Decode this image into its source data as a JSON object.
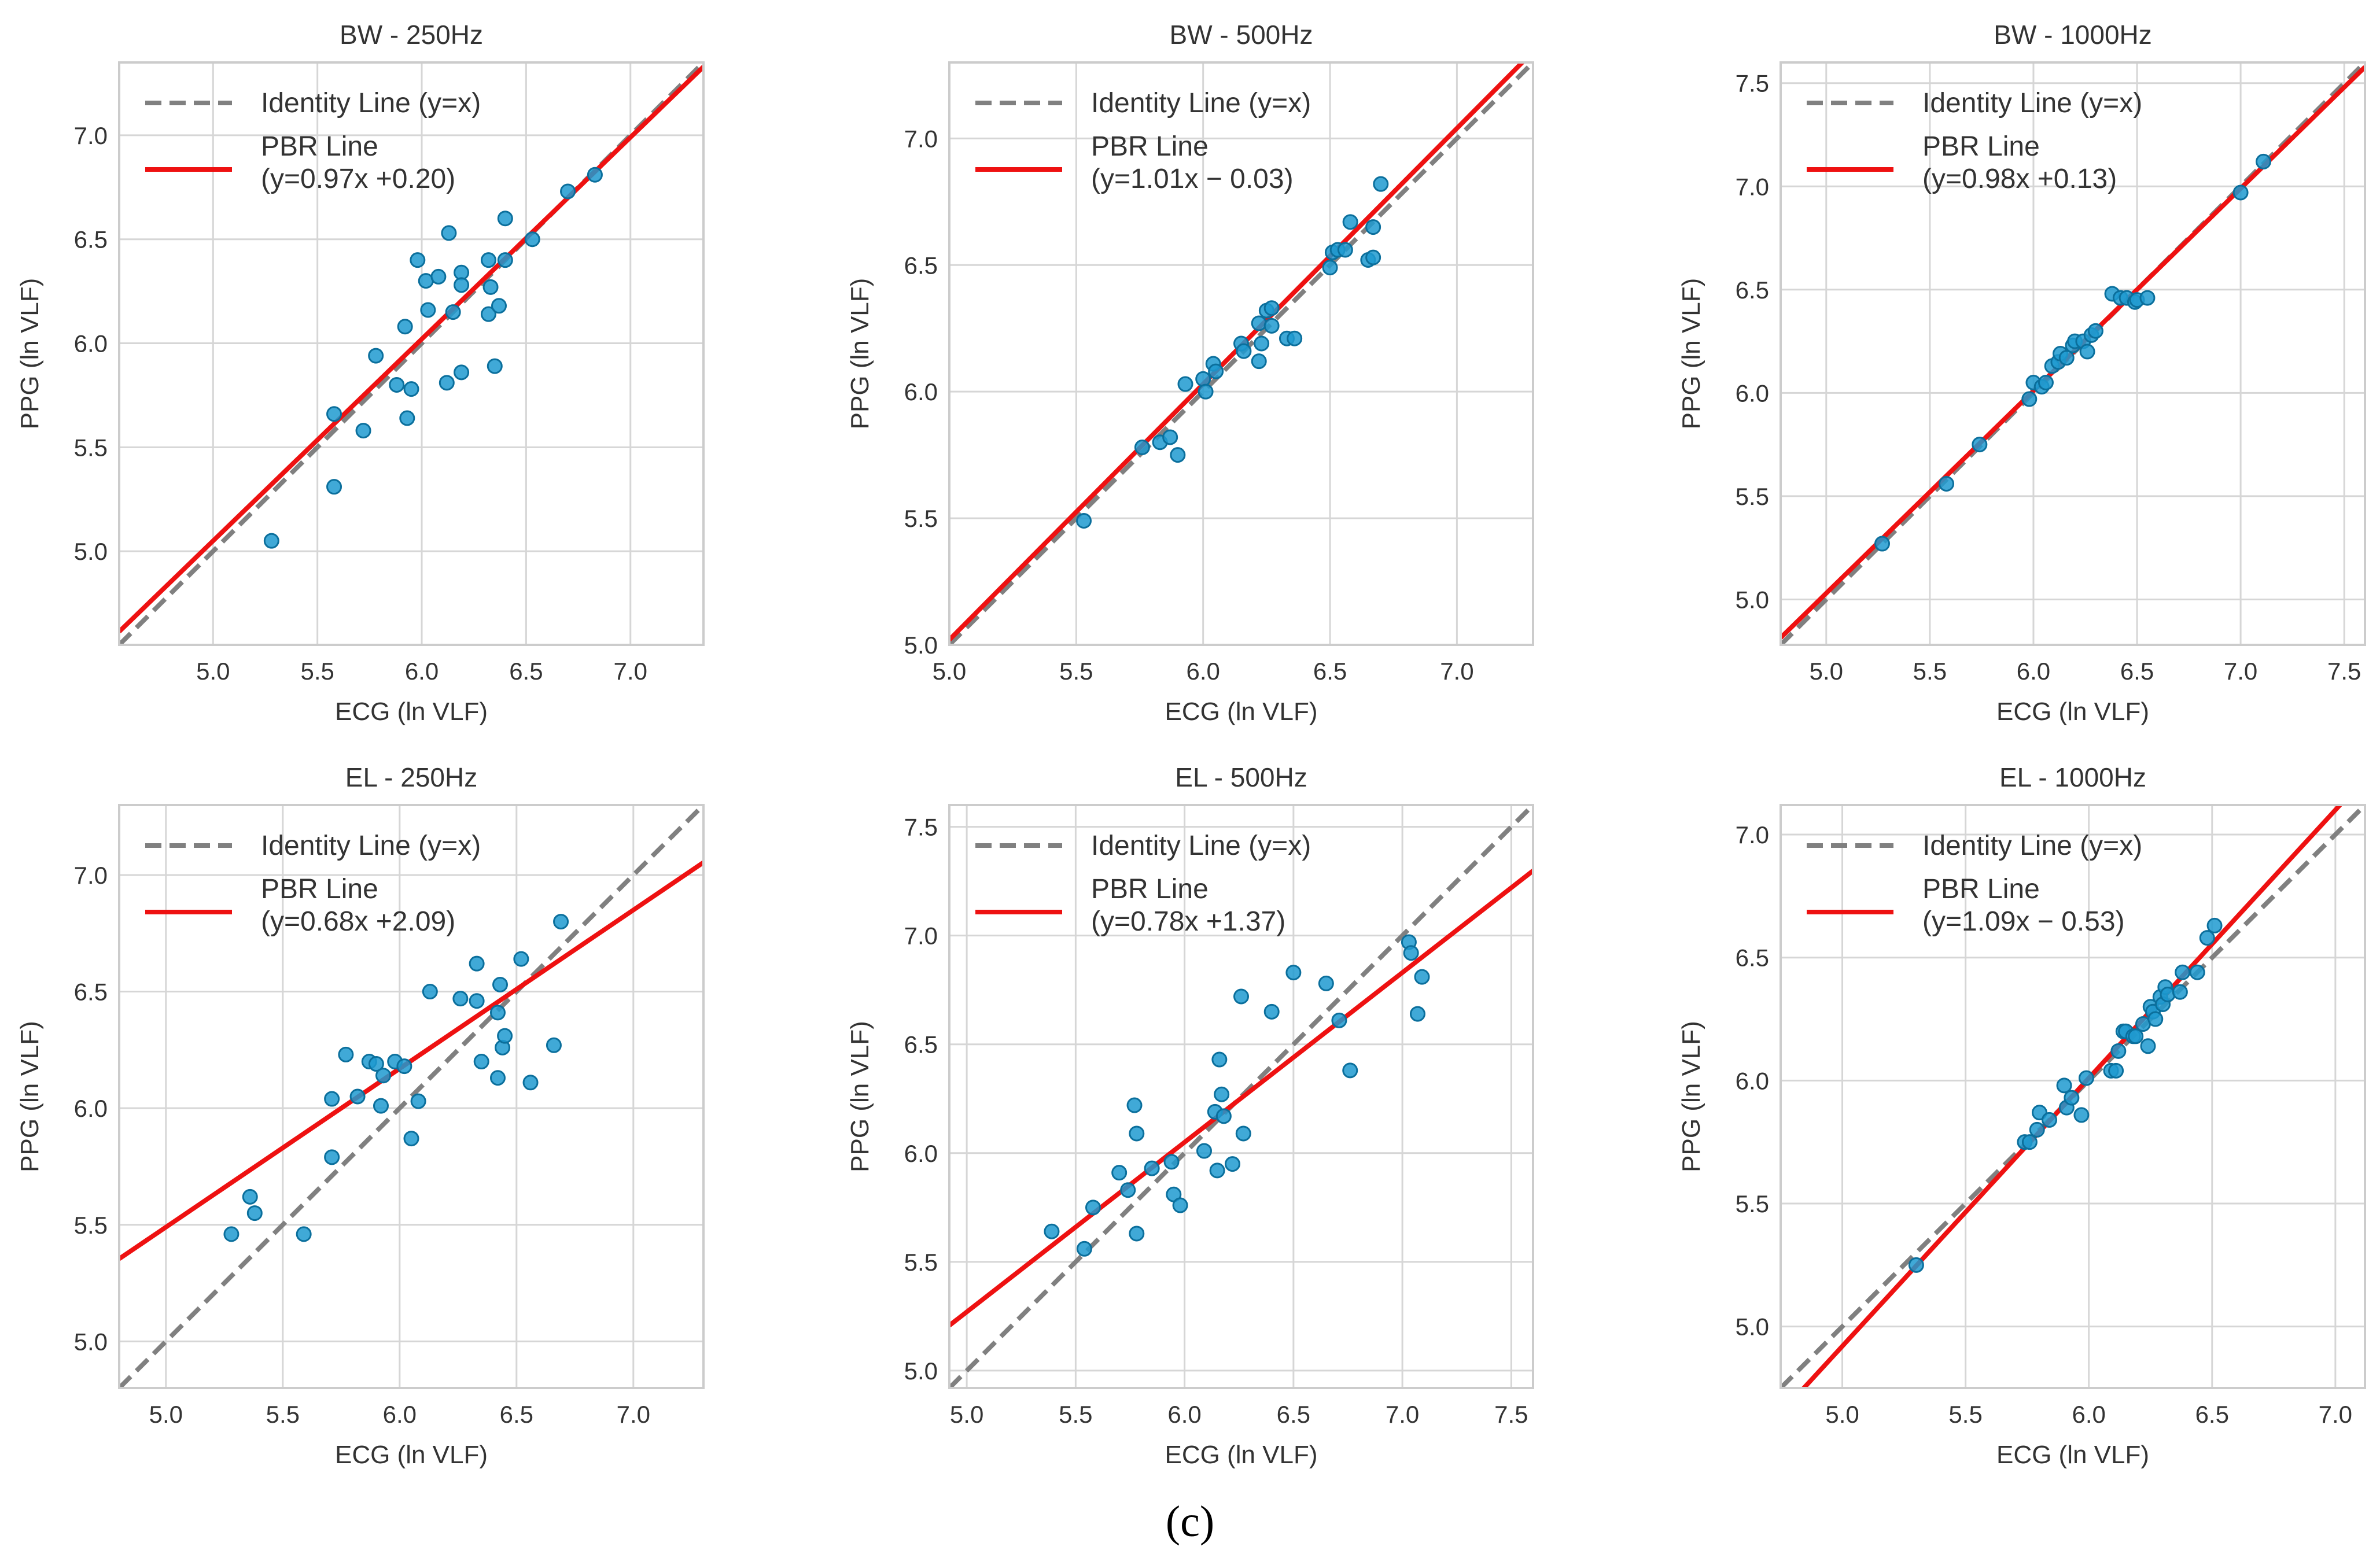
{
  "figure": {
    "caption": "(c)"
  },
  "colors": {
    "identity": "#808080",
    "pbr": "#ee1111",
    "points_fill": "#1f9ad0",
    "points_edge": "#0b6f9c",
    "grid": "#d6d6d6",
    "frame": "#cccccc"
  },
  "chart_data": [
    {
      "type": "scatter",
      "title": "BW - 250Hz",
      "xlabel": "ECG (ln VLF)",
      "ylabel": "PPG (ln VLF)",
      "xlim": [
        4.55,
        7.35
      ],
      "ylim": [
        4.55,
        7.35
      ],
      "xticks": [
        5.0,
        5.5,
        6.0,
        6.5,
        7.0
      ],
      "yticks": [
        5.0,
        5.5,
        6.0,
        6.5,
        7.0
      ],
      "tick_labels_x": [
        "5.0",
        "5.5",
        "6.0",
        "6.5",
        "7.0"
      ],
      "tick_labels_y": [
        "5.0",
        "5.5",
        "6.0",
        "6.5",
        "7.0"
      ],
      "grid": true,
      "legend_position": "upper-left",
      "legend": [
        "Identity Line (y=x)",
        "PBR Line",
        "(y=0.97x +0.20)"
      ],
      "pbr": {
        "slope": 0.97,
        "intercept": 0.2
      },
      "points": [
        [
          5.28,
          5.05
        ],
        [
          5.58,
          5.31
        ],
        [
          5.58,
          5.66
        ],
        [
          5.72,
          5.58
        ],
        [
          5.78,
          5.94
        ],
        [
          5.88,
          5.8
        ],
        [
          5.92,
          6.08
        ],
        [
          5.93,
          5.64
        ],
        [
          5.95,
          5.78
        ],
        [
          5.98,
          6.4
        ],
        [
          6.02,
          6.3
        ],
        [
          6.03,
          6.16
        ],
        [
          6.08,
          6.32
        ],
        [
          6.12,
          5.81
        ],
        [
          6.13,
          6.53
        ],
        [
          6.15,
          6.15
        ],
        [
          6.19,
          5.86
        ],
        [
          6.19,
          6.34
        ],
        [
          6.19,
          6.28
        ],
        [
          6.32,
          6.4
        ],
        [
          6.32,
          6.14
        ],
        [
          6.33,
          6.27
        ],
        [
          6.35,
          5.89
        ],
        [
          6.37,
          6.18
        ],
        [
          6.4,
          6.4
        ],
        [
          6.4,
          6.6
        ],
        [
          6.53,
          6.5
        ],
        [
          6.7,
          6.73
        ],
        [
          6.83,
          6.81
        ]
      ]
    },
    {
      "type": "scatter",
      "title": "BW - 500Hz",
      "xlabel": "ECG (ln VLF)",
      "ylabel": "PPG (ln VLF)",
      "xlim": [
        5.0,
        7.3
      ],
      "ylim": [
        5.0,
        7.3
      ],
      "xticks": [
        5.0,
        5.5,
        6.0,
        6.5,
        7.0
      ],
      "yticks": [
        5.0,
        5.5,
        6.0,
        6.5,
        7.0
      ],
      "tick_labels_x": [
        "5.0",
        "5.5",
        "6.0",
        "6.5",
        "7.0"
      ],
      "tick_labels_y": [
        "5.0",
        "5.5",
        "6.0",
        "6.5",
        "7.0"
      ],
      "grid": true,
      "legend_position": "upper-left",
      "legend": [
        "Identity Line (y=x)",
        "PBR Line",
        "(y=1.01x − 0.03)"
      ],
      "pbr": {
        "slope": 1.01,
        "intercept": -0.03
      },
      "points": [
        [
          5.53,
          5.49
        ],
        [
          5.76,
          5.78
        ],
        [
          5.83,
          5.8
        ],
        [
          5.87,
          5.82
        ],
        [
          5.9,
          5.75
        ],
        [
          5.93,
          6.03
        ],
        [
          6.0,
          6.05
        ],
        [
          6.01,
          6.0
        ],
        [
          6.04,
          6.11
        ],
        [
          6.05,
          6.08
        ],
        [
          6.15,
          6.19
        ],
        [
          6.16,
          6.16
        ],
        [
          6.22,
          6.12
        ],
        [
          6.22,
          6.27
        ],
        [
          6.23,
          6.19
        ],
        [
          6.25,
          6.32
        ],
        [
          6.27,
          6.33
        ],
        [
          6.27,
          6.26
        ],
        [
          6.33,
          6.21
        ],
        [
          6.36,
          6.21
        ],
        [
          6.5,
          6.49
        ],
        [
          6.51,
          6.55
        ],
        [
          6.53,
          6.56
        ],
        [
          6.56,
          6.56
        ],
        [
          6.58,
          6.67
        ],
        [
          6.65,
          6.52
        ],
        [
          6.67,
          6.53
        ],
        [
          6.67,
          6.65
        ],
        [
          6.7,
          6.82
        ]
      ]
    },
    {
      "type": "scatter",
      "title": "BW - 1000Hz",
      "xlabel": "ECG (ln VLF)",
      "ylabel": "PPG (ln VLF)",
      "xlim": [
        4.78,
        7.6
      ],
      "ylim": [
        4.78,
        7.6
      ],
      "xticks": [
        5.0,
        5.5,
        6.0,
        6.5,
        7.0,
        7.5
      ],
      "yticks": [
        5.0,
        5.5,
        6.0,
        6.5,
        7.0,
        7.5
      ],
      "tick_labels_x": [
        "5.0",
        "5.5",
        "6.0",
        "6.5",
        "7.0",
        "7.5"
      ],
      "tick_labels_y": [
        "5.0",
        "5.5",
        "6.0",
        "6.5",
        "7.0",
        "7.5"
      ],
      "grid": true,
      "legend_position": "upper-left",
      "legend": [
        "Identity Line (y=x)",
        "PBR Line",
        "(y=0.98x +0.13)"
      ],
      "pbr": {
        "slope": 0.98,
        "intercept": 0.13
      },
      "points": [
        [
          5.27,
          5.27
        ],
        [
          5.58,
          5.56
        ],
        [
          5.74,
          5.75
        ],
        [
          5.98,
          5.97
        ],
        [
          6.0,
          6.05
        ],
        [
          6.04,
          6.03
        ],
        [
          6.06,
          6.05
        ],
        [
          6.09,
          6.13
        ],
        [
          6.12,
          6.15
        ],
        [
          6.13,
          6.19
        ],
        [
          6.16,
          6.17
        ],
        [
          6.19,
          6.23
        ],
        [
          6.2,
          6.25
        ],
        [
          6.24,
          6.25
        ],
        [
          6.26,
          6.2
        ],
        [
          6.28,
          6.28
        ],
        [
          6.3,
          6.3
        ],
        [
          6.38,
          6.48
        ],
        [
          6.42,
          6.46
        ],
        [
          6.45,
          6.46
        ],
        [
          6.49,
          6.44
        ],
        [
          6.5,
          6.45
        ],
        [
          6.55,
          6.46
        ],
        [
          7.0,
          6.97
        ],
        [
          7.11,
          7.12
        ]
      ]
    },
    {
      "type": "scatter",
      "title": "EL - 250Hz",
      "xlabel": "ECG (ln VLF)",
      "ylabel": "PPG (ln VLF)",
      "xlim": [
        4.8,
        7.3
      ],
      "ylim": [
        4.8,
        7.3
      ],
      "xticks": [
        5.0,
        5.5,
        6.0,
        6.5,
        7.0
      ],
      "yticks": [
        5.0,
        5.5,
        6.0,
        6.5,
        7.0
      ],
      "tick_labels_x": [
        "5.0",
        "5.5",
        "6.0",
        "6.5",
        "7.0"
      ],
      "tick_labels_y": [
        "5.0",
        "5.5",
        "6.0",
        "6.5",
        "7.0"
      ],
      "grid": true,
      "legend_position": "upper-left",
      "legend": [
        "Identity Line (y=x)",
        "PBR Line",
        "(y=0.68x +2.09)"
      ],
      "pbr": {
        "slope": 0.68,
        "intercept": 2.09
      },
      "points": [
        [
          5.28,
          5.46
        ],
        [
          5.36,
          5.62
        ],
        [
          5.38,
          5.55
        ],
        [
          5.59,
          5.46
        ],
        [
          5.71,
          5.79
        ],
        [
          5.71,
          6.04
        ],
        [
          5.77,
          6.23
        ],
        [
          5.82,
          6.05
        ],
        [
          5.87,
          6.2
        ],
        [
          5.9,
          6.19
        ],
        [
          5.92,
          6.01
        ],
        [
          5.93,
          6.14
        ],
        [
          5.98,
          6.2
        ],
        [
          6.02,
          6.18
        ],
        [
          6.05,
          5.87
        ],
        [
          6.08,
          6.03
        ],
        [
          6.13,
          6.5
        ],
        [
          6.26,
          6.47
        ],
        [
          6.33,
          6.46
        ],
        [
          6.33,
          6.62
        ],
        [
          6.35,
          6.2
        ],
        [
          6.42,
          6.13
        ],
        [
          6.42,
          6.41
        ],
        [
          6.43,
          6.53
        ],
        [
          6.44,
          6.26
        ],
        [
          6.45,
          6.31
        ],
        [
          6.52,
          6.64
        ],
        [
          6.56,
          6.11
        ],
        [
          6.66,
          6.27
        ],
        [
          6.69,
          6.8
        ]
      ]
    },
    {
      "type": "scatter",
      "title": "EL - 500Hz",
      "xlabel": "ECG (ln VLF)",
      "ylabel": "PPG (ln VLF)",
      "xlim": [
        4.92,
        7.6
      ],
      "ylim": [
        4.92,
        7.6
      ],
      "xticks": [
        5.0,
        5.5,
        6.0,
        6.5,
        7.0,
        7.5
      ],
      "yticks": [
        5.0,
        5.5,
        6.0,
        6.5,
        7.0,
        7.5
      ],
      "tick_labels_x": [
        "5.0",
        "5.5",
        "6.0",
        "6.5",
        "7.0",
        "7.5"
      ],
      "tick_labels_y": [
        "5.0",
        "5.5",
        "6.0",
        "6.5",
        "7.0",
        "7.5"
      ],
      "grid": true,
      "legend_position": "upper-left",
      "legend": [
        "Identity Line (y=x)",
        "PBR Line",
        "(y=0.78x +1.37)"
      ],
      "pbr": {
        "slope": 0.78,
        "intercept": 1.37
      },
      "points": [
        [
          5.39,
          5.64
        ],
        [
          5.54,
          5.56
        ],
        [
          5.58,
          5.75
        ],
        [
          5.7,
          5.91
        ],
        [
          5.74,
          5.83
        ],
        [
          5.77,
          6.22
        ],
        [
          5.78,
          6.09
        ],
        [
          5.78,
          5.63
        ],
        [
          5.85,
          5.93
        ],
        [
          5.94,
          5.96
        ],
        [
          5.95,
          5.81
        ],
        [
          5.98,
          5.76
        ],
        [
          6.09,
          6.01
        ],
        [
          6.14,
          6.19
        ],
        [
          6.15,
          5.92
        ],
        [
          6.16,
          6.43
        ],
        [
          6.17,
          6.27
        ],
        [
          6.18,
          6.17
        ],
        [
          6.22,
          5.95
        ],
        [
          6.26,
          6.72
        ],
        [
          6.27,
          6.09
        ],
        [
          6.4,
          6.65
        ],
        [
          6.5,
          6.83
        ],
        [
          6.65,
          6.78
        ],
        [
          6.71,
          6.61
        ],
        [
          6.76,
          6.38
        ],
        [
          7.03,
          6.97
        ],
        [
          7.04,
          6.92
        ],
        [
          7.07,
          6.64
        ],
        [
          7.09,
          6.81
        ]
      ]
    },
    {
      "type": "scatter",
      "title": "EL - 1000Hz",
      "xlabel": "ECG (ln VLF)",
      "ylabel": "PPG (ln VLF)",
      "xlim": [
        4.75,
        7.12
      ],
      "ylim": [
        4.75,
        7.12
      ],
      "xticks": [
        5.0,
        5.5,
        6.0,
        6.5,
        7.0
      ],
      "yticks": [
        5.0,
        5.5,
        6.0,
        6.5,
        7.0
      ],
      "tick_labels_x": [
        "5.0",
        "5.5",
        "6.0",
        "6.5",
        "7.0"
      ],
      "tick_labels_y": [
        "5.0",
        "5.5",
        "6.0",
        "6.5",
        "7.0"
      ],
      "grid": true,
      "legend_position": "upper-left",
      "legend": [
        "Identity Line (y=x)",
        "PBR Line",
        "(y=1.09x − 0.53)"
      ],
      "pbr": {
        "slope": 1.09,
        "intercept": -0.53
      },
      "points": [
        [
          5.3,
          5.25
        ],
        [
          5.74,
          5.75
        ],
        [
          5.76,
          5.75
        ],
        [
          5.79,
          5.8
        ],
        [
          5.8,
          5.87
        ],
        [
          5.84,
          5.84
        ],
        [
          5.9,
          5.98
        ],
        [
          5.91,
          5.89
        ],
        [
          5.93,
          5.93
        ],
        [
          5.97,
          5.86
        ],
        [
          5.99,
          6.01
        ],
        [
          6.09,
          6.04
        ],
        [
          6.11,
          6.04
        ],
        [
          6.12,
          6.12
        ],
        [
          6.14,
          6.2
        ],
        [
          6.15,
          6.2
        ],
        [
          6.18,
          6.18
        ],
        [
          6.19,
          6.18
        ],
        [
          6.22,
          6.23
        ],
        [
          6.24,
          6.14
        ],
        [
          6.25,
          6.3
        ],
        [
          6.26,
          6.28
        ],
        [
          6.27,
          6.25
        ],
        [
          6.29,
          6.34
        ],
        [
          6.3,
          6.31
        ],
        [
          6.31,
          6.38
        ],
        [
          6.32,
          6.35
        ],
        [
          6.37,
          6.36
        ],
        [
          6.38,
          6.44
        ],
        [
          6.44,
          6.44
        ],
        [
          6.48,
          6.58
        ],
        [
          6.51,
          6.63
        ]
      ]
    }
  ]
}
